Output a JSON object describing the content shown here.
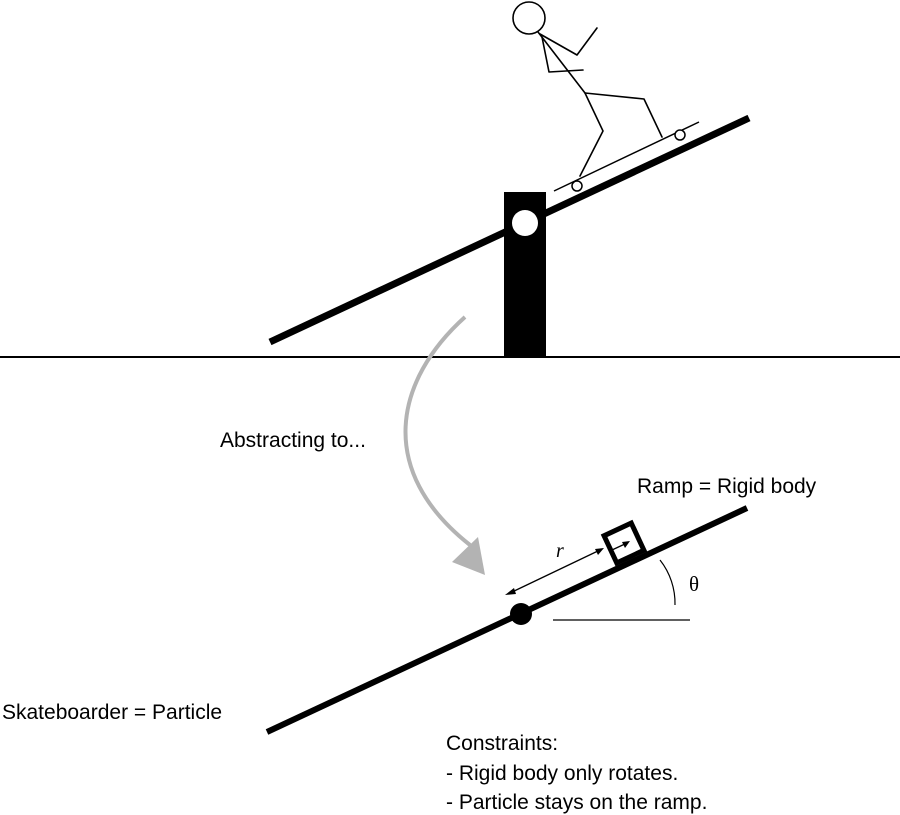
{
  "labels": {
    "abstracting": "Abstracting to...",
    "ramp": "Ramp = Rigid body",
    "skateboarder": "Skateboarder = Particle",
    "radius_symbol": "r",
    "angle_symbol": "θ",
    "constraints_title": "Constraints:",
    "constraints": [
      "- Rigid body only rotates.",
      "- Particle stays on the ramp."
    ]
  },
  "colors": {
    "ink": "#000000",
    "arrow": "#b3b3b3",
    "background": "#ffffff"
  }
}
